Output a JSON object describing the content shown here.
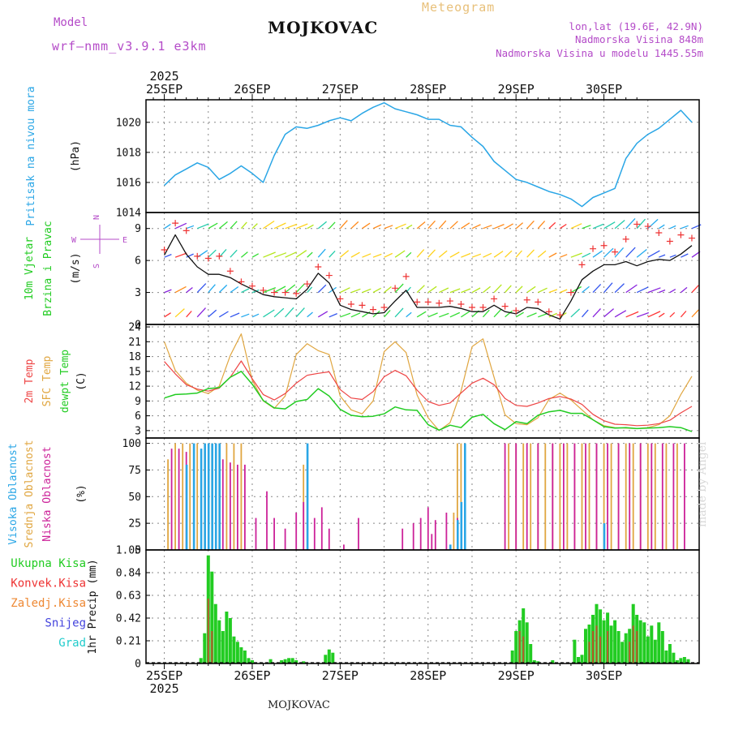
{
  "header": {
    "model_label": "Model",
    "model_name": "wrf–nmm_v3.9.1 e3km",
    "city": "MOJKOVAC",
    "meteogram": "Meteogram",
    "lonlat": "lon,lat (19.6E, 42.9N)",
    "elevation": "Nadmorska Visina 848m",
    "model_elevation": "Nadmorska Visina u modelu 1445.55m"
  },
  "footer_city": "MOJKOVAC",
  "watermark": "made by Angel",
  "colors": {
    "pressure": "#2aa6e6",
    "wind_speed": "#111111",
    "wind_gust": "#ee3333",
    "temp_2m": "#ee4444",
    "temp_sfc": "#e0a640",
    "dewpoint": "#22cc22",
    "cloud_high": "#2aa6e6",
    "cloud_mid": "#e0a640",
    "cloud_low": "#cc2299",
    "precip_total": "#22cc22",
    "precip_convective": "#ee3333",
    "precip_frozen": "#ee8833",
    "snow": "#4444dd",
    "hail": "#22cccc",
    "grid": "#888888"
  },
  "chart_data": [
    {
      "type": "line",
      "name": "pressure",
      "title": "Pritisak na nivou mora",
      "ylabel": "(hPa)",
      "ylim": [
        1014,
        1021.5
      ],
      "yticks": [
        "1014",
        "1016",
        "1018",
        "1020"
      ],
      "x_day_labels": [
        "25SEP",
        "26SEP",
        "27SEP",
        "28SEP",
        "29SEP",
        "30SEP"
      ],
      "year_label": "2025",
      "x_hours": [
        0,
        3,
        6,
        9,
        12,
        15,
        18,
        21,
        24,
        27,
        30,
        33,
        36,
        39,
        42,
        45,
        48,
        51,
        54,
        57,
        60,
        63,
        66,
        69,
        72,
        75,
        78,
        81,
        84,
        87,
        90,
        93,
        96,
        99,
        102,
        105,
        108,
        111,
        114,
        117,
        120,
        123,
        126,
        129,
        132,
        135,
        138,
        141,
        144
      ],
      "series": [
        {
          "name": "Pritisak",
          "values": [
            1015.8,
            1016.5,
            1016.9,
            1017.3,
            1017.0,
            1016.2,
            1016.6,
            1017.1,
            1016.6,
            1016.0,
            1017.8,
            1019.2,
            1019.7,
            1019.6,
            1019.8,
            1020.1,
            1020.3,
            1020.1,
            1020.6,
            1021.0,
            1021.3,
            1020.9,
            1020.7,
            1020.5,
            1020.2,
            1020.2,
            1019.8,
            1019.7,
            1019.0,
            1018.4,
            1017.4,
            1016.8,
            1016.2,
            1016.0,
            1015.7,
            1015.4,
            1015.2,
            1014.9,
            1014.4,
            1015.0,
            1015.3,
            1015.6,
            1017.6,
            1018.6,
            1019.2,
            1019.6,
            1020.2,
            1020.8,
            1020.0
          ]
        }
      ]
    },
    {
      "type": "line",
      "name": "wind",
      "title": "10m Vjetar",
      "title2": "Brzina i Pravac",
      "ylabel": "(m/s)",
      "ylim": [
        0,
        10.5
      ],
      "yticks": [
        "0",
        "3",
        "6",
        "9"
      ],
      "compass": [
        "N",
        "W",
        "E",
        "S"
      ],
      "x_hours": [
        0,
        3,
        6,
        9,
        12,
        15,
        18,
        21,
        24,
        27,
        30,
        33,
        36,
        39,
        42,
        45,
        48,
        51,
        54,
        57,
        60,
        63,
        66,
        69,
        72,
        75,
        78,
        81,
        84,
        87,
        90,
        93,
        96,
        99,
        102,
        105,
        108,
        111,
        114,
        117,
        120,
        123,
        126,
        129,
        132,
        135,
        138,
        141,
        144
      ],
      "series": [
        {
          "name": "Brzina",
          "values": [
            6.5,
            8.4,
            6.6,
            5.4,
            4.7,
            4.7,
            4.4,
            3.8,
            3.3,
            2.8,
            2.6,
            2.5,
            2.4,
            3.3,
            4.8,
            3.9,
            1.8,
            1.4,
            1.2,
            1.0,
            1.1,
            2.2,
            3.2,
            1.6,
            1.6,
            1.6,
            1.7,
            1.5,
            1.2,
            1.2,
            1.8,
            1.2,
            1.0,
            1.6,
            1.5,
            0.9,
            0.5,
            2.2,
            4.2,
            5.0,
            5.6,
            5.6,
            5.9,
            5.5,
            5.9,
            6.1,
            6.0,
            6.6,
            7.4
          ]
        },
        {
          "name": "Udar",
          "values": [
            7.0,
            9.5,
            8.8,
            6.4,
            6.2,
            6.4,
            5.0,
            4.0,
            3.6,
            3.2,
            3.0,
            3.0,
            2.9,
            3.8,
            5.4,
            4.6,
            2.4,
            1.9,
            1.8,
            1.4,
            1.6,
            3.4,
            4.5,
            2.1,
            2.1,
            2.0,
            2.2,
            1.9,
            1.6,
            1.6,
            2.4,
            1.7,
            1.3,
            2.3,
            2.1,
            1.2,
            0.9,
            3.0,
            5.6,
            7.1,
            7.4,
            6.8,
            8.0,
            9.4,
            9.2,
            8.6,
            7.8,
            8.4,
            8.1
          ]
        }
      ]
    },
    {
      "type": "line",
      "name": "temperature",
      "title": "2m Temp",
      "title2": "SFC Temp",
      "title3": "dewpt Temp",
      "ylabel": "(C)",
      "ylim": [
        1.5,
        24.5
      ],
      "yticks": [
        "3",
        "6",
        "9",
        "12",
        "15",
        "18",
        "21",
        "24"
      ],
      "x_hours": [
        0,
        3,
        6,
        9,
        12,
        15,
        18,
        21,
        24,
        27,
        30,
        33,
        36,
        39,
        42,
        45,
        48,
        51,
        54,
        57,
        60,
        63,
        66,
        69,
        72,
        75,
        78,
        81,
        84,
        87,
        90,
        93,
        96,
        99,
        102,
        105,
        108,
        111,
        114,
        117,
        120,
        123,
        126,
        129,
        132,
        135,
        138,
        141,
        144
      ],
      "series": [
        {
          "name": "2m Temp",
          "values": [
            17.0,
            14.5,
            12.3,
            11.4,
            11.0,
            11.6,
            13.8,
            17.1,
            13.5,
            10.3,
            9.2,
            10.5,
            12.6,
            14.2,
            14.6,
            14.9,
            11.3,
            9.6,
            9.3,
            10.9,
            13.9,
            15.2,
            14.1,
            11.2,
            8.9,
            8.1,
            8.6,
            10.6,
            12.6,
            13.6,
            12.3,
            9.5,
            8.1,
            7.9,
            8.6,
            9.5,
            9.9,
            9.4,
            8.3,
            6.3,
            5.0,
            4.3,
            4.2,
            4.0,
            4.1,
            4.4,
            5.1,
            6.6,
            7.9
          ]
        },
        {
          "name": "SFC Temp",
          "values": [
            21.0,
            15.2,
            12.6,
            11.2,
            10.5,
            12.0,
            18.2,
            22.6,
            13.2,
            9.0,
            7.5,
            10.0,
            18.4,
            20.6,
            19.2,
            18.4,
            10.0,
            7.2,
            6.4,
            9.0,
            19.0,
            21.0,
            18.8,
            10.2,
            5.6,
            3.0,
            4.6,
            11.0,
            20.0,
            21.6,
            13.8,
            6.2,
            4.4,
            4.2,
            5.6,
            9.3,
            10.6,
            9.2,
            7.2,
            5.2,
            4.0,
            3.6,
            3.5,
            3.4,
            3.6,
            4.2,
            6.0,
            10.3,
            14.0
          ]
        },
        {
          "name": "dewpt Temp",
          "values": [
            9.6,
            10.3,
            10.4,
            10.6,
            11.5,
            11.7,
            13.8,
            15.0,
            12.4,
            9.1,
            7.6,
            7.4,
            8.9,
            9.3,
            11.5,
            10.0,
            7.3,
            6.1,
            5.8,
            5.9,
            6.4,
            7.8,
            7.2,
            7.1,
            4.2,
            3.1,
            4.1,
            3.6,
            5.7,
            6.3,
            4.4,
            3.2,
            4.8,
            4.4,
            6.1,
            6.8,
            7.1,
            6.5,
            6.5,
            5.2,
            3.8,
            3.5,
            3.6,
            3.4,
            3.5,
            3.6,
            3.8,
            3.6,
            2.8
          ]
        }
      ]
    },
    {
      "type": "bar",
      "name": "clouds",
      "title": "Visoka Oblacnost",
      "title2": "Srednja Oblacnost",
      "title3": "Niska Oblacnost",
      "ylabel": "(%)",
      "ylim": [
        0,
        105
      ],
      "yticks": [
        "0",
        "25",
        "50",
        "75",
        "100"
      ],
      "series": [
        {
          "name": "Visoka",
          "x": [
            6,
            8,
            10,
            11,
            12,
            13,
            14,
            15,
            39,
            78,
            80,
            81,
            82,
            120
          ],
          "values": [
            80,
            100,
            95,
            100,
            100,
            100,
            100,
            100,
            100,
            5,
            28,
            45,
            100,
            25
          ]
        },
        {
          "name": "Srednja",
          "x": [
            1,
            3,
            5,
            7,
            9,
            11,
            13,
            15,
            17,
            19,
            21,
            38,
            79,
            80,
            81,
            82,
            94,
            96,
            98,
            100,
            102,
            104,
            106,
            108,
            110,
            112,
            114,
            116,
            118,
            120,
            122,
            124,
            126,
            128,
            130,
            132,
            134,
            137,
            140
          ],
          "values": [
            85,
            100,
            100,
            100,
            100,
            100,
            100,
            100,
            100,
            100,
            100,
            80,
            35,
            100,
            100,
            100,
            100,
            100,
            100,
            100,
            100,
            100,
            100,
            100,
            100,
            100,
            100,
            100,
            100,
            100,
            100,
            100,
            100,
            100,
            100,
            100,
            100,
            100,
            100
          ]
        },
        {
          "name": "Niska",
          "x": [
            2,
            4,
            6,
            16,
            18,
            20,
            22,
            25,
            28,
            30,
            33,
            36,
            38,
            41,
            43,
            45,
            49,
            53,
            65,
            68,
            70,
            72,
            73,
            74,
            77,
            80,
            93,
            96,
            99,
            102,
            106,
            109,
            112,
            115,
            118,
            121,
            124,
            127,
            130,
            133,
            136,
            139,
            142
          ],
          "values": [
            95,
            95,
            92,
            85,
            82,
            80,
            80,
            30,
            55,
            30,
            20,
            35,
            45,
            30,
            40,
            20,
            5,
            30,
            20,
            25,
            30,
            40,
            15,
            28,
            35,
            30,
            100,
            100,
            100,
            100,
            100,
            100,
            100,
            100,
            100,
            100,
            100,
            100,
            100,
            100,
            100,
            100,
            100
          ]
        }
      ]
    },
    {
      "type": "bar",
      "name": "precip",
      "title": "1hr Precip",
      "ylabel": "(mm)",
      "ylim": [
        0,
        1.05
      ],
      "yticks": [
        "0",
        "0.21",
        "0.42",
        "0.63",
        "0.84",
        "1.05"
      ],
      "legend": [
        "Ukupna Kisa",
        "Konvek.Kisa",
        "Zaledj.Kisa",
        "Snijeg",
        "Grad"
      ],
      "series": [
        {
          "name": "Ukupna Kisa",
          "x": [
            10,
            11,
            12,
            13,
            14,
            15,
            16,
            17,
            18,
            19,
            20,
            21,
            22,
            23,
            24,
            29,
            32,
            33,
            34,
            35,
            36,
            38,
            44,
            45,
            46,
            95,
            96,
            97,
            98,
            99,
            100,
            101,
            102,
            106,
            112,
            113,
            114,
            115,
            116,
            117,
            118,
            119,
            120,
            121,
            122,
            123,
            124,
            125,
            126,
            127,
            128,
            129,
            130,
            131,
            132,
            133,
            134,
            135,
            136,
            137,
            138,
            139,
            140,
            141,
            142,
            143
          ],
          "values": [
            0.05,
            0.28,
            1.0,
            0.85,
            0.55,
            0.4,
            0.3,
            0.48,
            0.42,
            0.25,
            0.2,
            0.15,
            0.12,
            0.05,
            0.03,
            0.04,
            0.03,
            0.04,
            0.05,
            0.05,
            0.03,
            0.02,
            0.08,
            0.13,
            0.1,
            0.12,
            0.3,
            0.4,
            0.51,
            0.38,
            0.18,
            0.03,
            0.02,
            0.03,
            0.22,
            0.06,
            0.08,
            0.32,
            0.36,
            0.45,
            0.55,
            0.5,
            0.4,
            0.47,
            0.35,
            0.4,
            0.3,
            0.2,
            0.28,
            0.32,
            0.55,
            0.45,
            0.4,
            0.38,
            0.25,
            0.35,
            0.22,
            0.38,
            0.3,
            0.12,
            0.18,
            0.1,
            0.03,
            0.05,
            0.06,
            0.04
          ]
        },
        {
          "name": "Konvek.Kisa",
          "x": [
            12,
            13,
            97,
            98,
            116,
            117,
            118,
            119,
            121,
            127,
            128,
            129
          ],
          "values": [
            0.6,
            0.3,
            0.3,
            0.25,
            0.2,
            0.3,
            0.35,
            0.25,
            0.3,
            0.2,
            0.35,
            0.3
          ]
        }
      ]
    }
  ]
}
